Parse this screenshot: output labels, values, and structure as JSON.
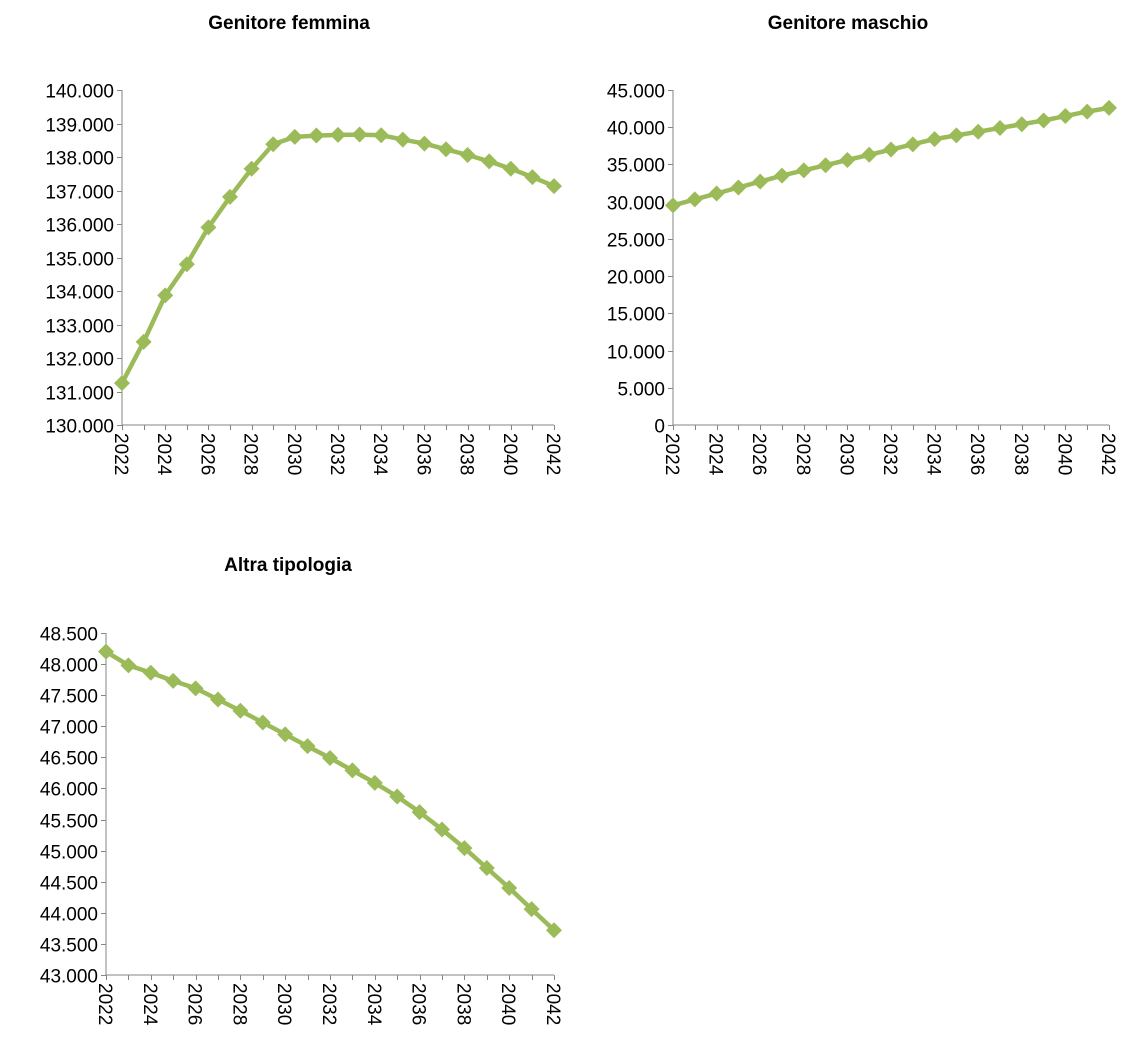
{
  "colors": {
    "series": "#9bbb59",
    "axis": "#868686"
  },
  "chart_data": [
    {
      "type": "line",
      "title": "Genitore femmina",
      "marker": "diamond",
      "x": [
        2022,
        2023,
        2024,
        2025,
        2026,
        2027,
        2028,
        2029,
        2030,
        2031,
        2032,
        2033,
        2034,
        2035,
        2036,
        2037,
        2038,
        2039,
        2040,
        2041,
        2042
      ],
      "xticks": [
        "2022",
        "2024",
        "2026",
        "2028",
        "2030",
        "2032",
        "2034",
        "2036",
        "2038",
        "2040",
        "2042"
      ],
      "xlim": [
        2022,
        2042
      ],
      "ylim": [
        130000,
        140000
      ],
      "yticks": [
        130000,
        131000,
        132000,
        133000,
        134000,
        135000,
        136000,
        137000,
        138000,
        139000,
        140000
      ],
      "ytick_labels": [
        "130.000",
        "131.000",
        "132.000",
        "133.000",
        "134.000",
        "135.000",
        "136.000",
        "137.000",
        "138.000",
        "139.000",
        "140.000"
      ],
      "values": [
        131250,
        132480,
        133870,
        134800,
        135900,
        136810,
        137650,
        138380,
        138600,
        138640,
        138660,
        138670,
        138650,
        138520,
        138400,
        138230,
        138060,
        137870,
        137650,
        137400,
        137130
      ]
    },
    {
      "type": "line",
      "title": "Genitore maschio",
      "marker": "diamond",
      "x": [
        2022,
        2023,
        2024,
        2025,
        2026,
        2027,
        2028,
        2029,
        2030,
        2031,
        2032,
        2033,
        2034,
        2035,
        2036,
        2037,
        2038,
        2039,
        2040,
        2041,
        2042
      ],
      "xticks": [
        "2022",
        "2024",
        "2026",
        "2028",
        "2030",
        "2032",
        "2034",
        "2036",
        "2038",
        "2040",
        "2042"
      ],
      "xlim": [
        2022,
        2042
      ],
      "ylim": [
        0,
        45000
      ],
      "yticks": [
        0,
        5000,
        10000,
        15000,
        20000,
        25000,
        30000,
        35000,
        40000,
        45000
      ],
      "ytick_labels": [
        "0",
        "5.000",
        "10.000",
        "15.000",
        "20.000",
        "25.000",
        "30.000",
        "35.000",
        "40.000",
        "45.000"
      ],
      "values": [
        29500,
        30300,
        31100,
        31900,
        32700,
        33500,
        34200,
        34900,
        35600,
        36300,
        37000,
        37700,
        38400,
        38900,
        39400,
        39900,
        40400,
        40900,
        41500,
        42100,
        42600
      ]
    },
    {
      "type": "line",
      "title": "Altra tipologia",
      "marker": "diamond",
      "x": [
        2022,
        2023,
        2024,
        2025,
        2026,
        2027,
        2028,
        2029,
        2030,
        2031,
        2032,
        2033,
        2034,
        2035,
        2036,
        2037,
        2038,
        2039,
        2040,
        2041,
        2042
      ],
      "xticks": [
        "2022",
        "2024",
        "2026",
        "2028",
        "2030",
        "2032",
        "2034",
        "2036",
        "2038",
        "2040",
        "2042"
      ],
      "xlim": [
        2022,
        2042
      ],
      "ylim": [
        43000,
        48500
      ],
      "yticks": [
        43000,
        43500,
        44000,
        44500,
        45000,
        45500,
        46000,
        46500,
        47000,
        47500,
        48000,
        48500
      ],
      "ytick_labels": [
        "43.000",
        "43.500",
        "44.000",
        "44.500",
        "45.000",
        "45.500",
        "46.000",
        "46.500",
        "47.000",
        "47.500",
        "48.000",
        "48.500"
      ],
      "values": [
        48200,
        47980,
        47860,
        47730,
        47610,
        47430,
        47250,
        47060,
        46870,
        46680,
        46490,
        46290,
        46090,
        45870,
        45620,
        45340,
        45040,
        44720,
        44400,
        44060,
        43720
      ]
    }
  ]
}
